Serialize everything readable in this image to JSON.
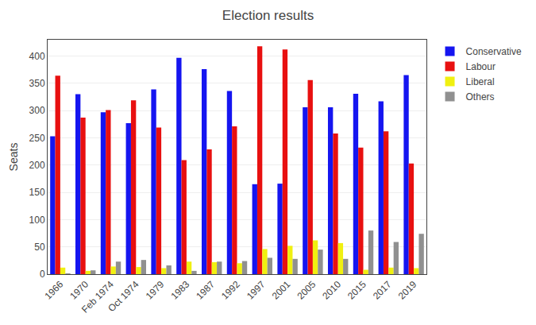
{
  "chart_data": {
    "type": "bar",
    "title": "Election results",
    "ylabel": "Seats",
    "categories": [
      "1966",
      "1970",
      "Feb 1974",
      "Oct 1974",
      "1979",
      "1983",
      "1987",
      "1992",
      "1997",
      "2001",
      "2005",
      "2010",
      "2015",
      "2017",
      "2019"
    ],
    "series": [
      {
        "name": "Conservative",
        "color": "#1515f0",
        "values": [
          253,
          330,
          297,
          277,
          339,
          397,
          376,
          336,
          165,
          166,
          306,
          306,
          331,
          317,
          365
        ]
      },
      {
        "name": "Labour",
        "color": "#e81010",
        "values": [
          364,
          287,
          301,
          319,
          269,
          209,
          229,
          271,
          418,
          412,
          356,
          258,
          232,
          262,
          203
        ]
      },
      {
        "name": "Liberal",
        "color": "#f0f010",
        "values": [
          12,
          6,
          14,
          13,
          11,
          23,
          22,
          20,
          46,
          52,
          62,
          57,
          8,
          12,
          11
        ]
      },
      {
        "name": "Others",
        "color": "#909090",
        "values": [
          1,
          7,
          23,
          26,
          16,
          6,
          23,
          24,
          30,
          28,
          45,
          28,
          80,
          59,
          74
        ]
      }
    ],
    "ylim": [
      0,
      430
    ],
    "yticks": [
      0,
      50,
      100,
      150,
      200,
      250,
      300,
      350,
      400
    ],
    "grid": true,
    "legend": "right"
  }
}
